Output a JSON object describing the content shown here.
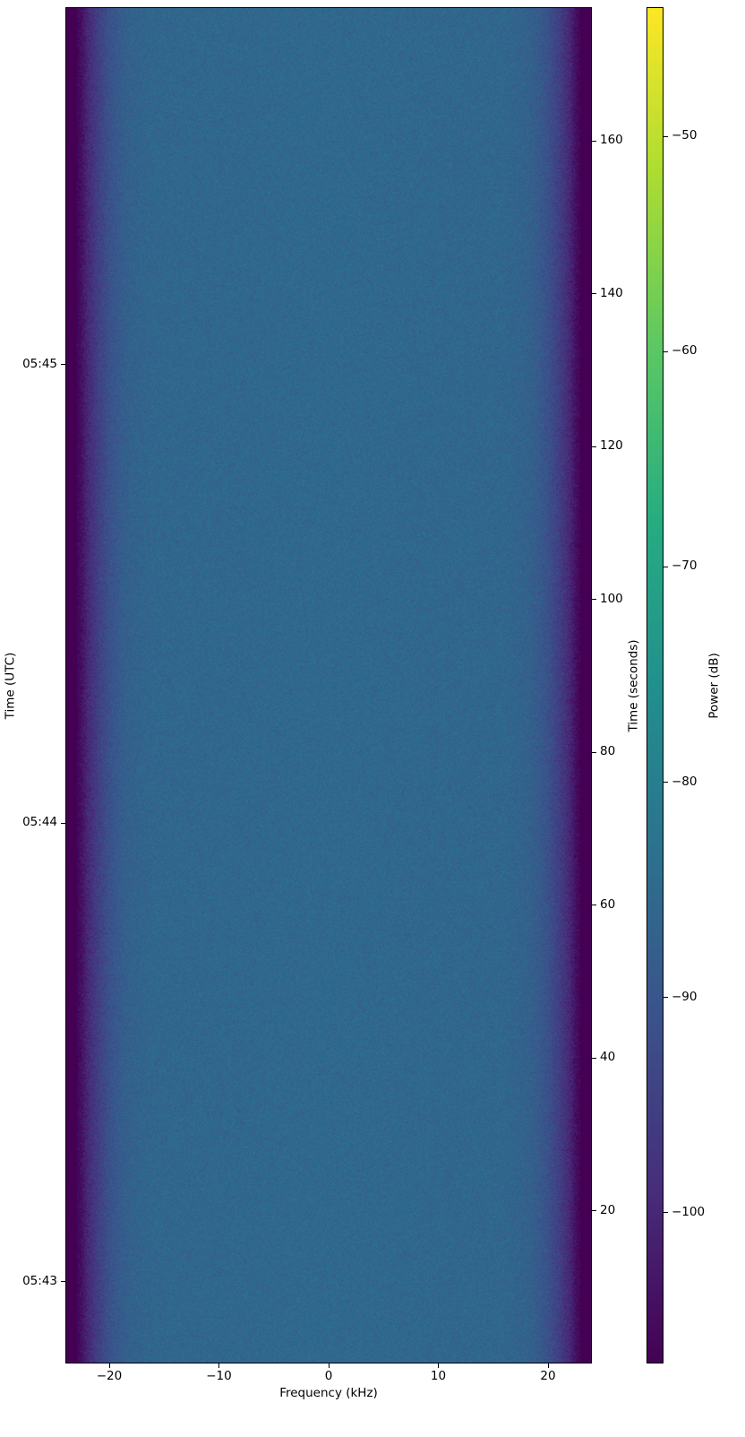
{
  "chart_data": {
    "type": "heatmap",
    "subtype": "spectrogram",
    "xlabel": "Frequency (kHz)",
    "ylabel_left": "Time (UTC)",
    "ylabel_right": "Time (seconds)",
    "colorbar_label": "Power (dB)",
    "xlim": [
      -24,
      24
    ],
    "ylim_seconds": [
      0,
      177.5
    ],
    "x_ticks": [
      -20,
      -10,
      0,
      10,
      20
    ],
    "x_tick_labels": [
      "−20",
      "−10",
      "0",
      "10",
      "20"
    ],
    "y_right_ticks": [
      20,
      40,
      60,
      80,
      100,
      120,
      140,
      160
    ],
    "y_right_tick_labels": [
      "20",
      "40",
      "60",
      "80",
      "100",
      "120",
      "140",
      "160"
    ],
    "y_left_ticks_seconds": [
      10.7,
      70.7,
      130.7
    ],
    "y_left_tick_labels": [
      "05:43",
      "05:44",
      "05:45"
    ],
    "colormap": "viridis",
    "clim": [
      -107,
      -44
    ],
    "colorbar_ticks": [
      -100,
      -90,
      -80,
      -70,
      -60,
      -50
    ],
    "colorbar_tick_labels": [
      "−100",
      "−90",
      "−80",
      "−70",
      "−60",
      "−50"
    ],
    "band_profile": {
      "frequency_khz": [
        -24,
        -23,
        -22.5,
        -22,
        -21,
        -20,
        -19,
        -18,
        -16,
        0,
        16,
        18,
        19,
        20,
        21,
        22,
        22.5,
        23,
        24
      ],
      "mean_power_db": [
        -107,
        -107,
        -104,
        -100,
        -95,
        -91,
        -88.5,
        -87,
        -86,
        -85.5,
        -86,
        -87,
        -88.5,
        -91,
        -95,
        -100,
        -104,
        -107,
        -107
      ]
    },
    "noise_std_db": 2.5,
    "grid": false
  }
}
